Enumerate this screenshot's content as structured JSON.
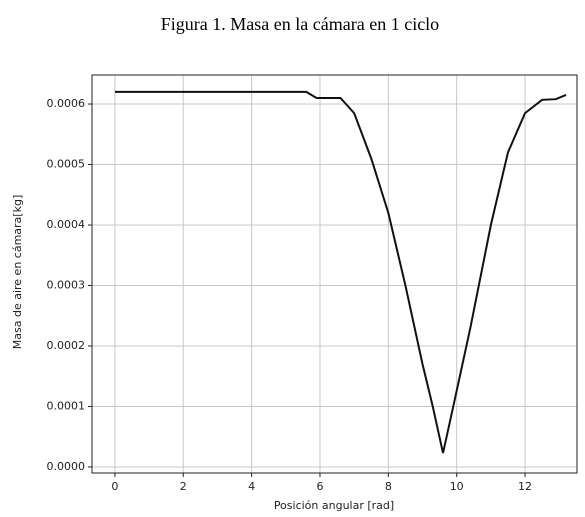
{
  "chart_data": {
    "type": "line",
    "title": "Figura 1. Masa en la cámara en 1 ciclo",
    "xlabel": "Posición angular [rad]",
    "ylabel": "Masa de aire en cámara[kg]",
    "x": [
      0,
      5.6,
      5.9,
      6.2,
      6.6,
      7.0,
      7.5,
      8.0,
      8.5,
      9.0,
      9.3,
      9.6,
      9.9,
      10.4,
      11.0,
      11.5,
      12.0,
      12.5,
      12.9,
      13.2
    ],
    "series": [
      {
        "color": "#111111",
        "values": [
          0.00062,
          0.00062,
          0.00061,
          0.00061,
          0.00061,
          0.000585,
          0.00051,
          0.00042,
          0.0003,
          0.00017,
          0.0001,
          2.3e-05,
          0.0001,
          0.00023,
          0.0004,
          0.00052,
          0.000585,
          0.000607,
          0.000608,
          0.000615
        ]
      }
    ],
    "xlim": [
      -0.67,
      13.52
    ],
    "ylim": [
      -1e-05,
      0.000648
    ],
    "xticks": [
      0,
      2,
      4,
      6,
      8,
      10,
      12
    ],
    "yticks": [
      {
        "value": 0,
        "label": "0.0000"
      },
      {
        "value": 0.0001,
        "label": "0.0001"
      },
      {
        "value": 0.0002,
        "label": "0.0002"
      },
      {
        "value": 0.0003,
        "label": "0.0003"
      },
      {
        "value": 0.0004,
        "label": "0.0004"
      },
      {
        "value": 0.0005,
        "label": "0.0005"
      },
      {
        "value": 0.0006,
        "label": "0.0006"
      }
    ],
    "grid": true
  }
}
